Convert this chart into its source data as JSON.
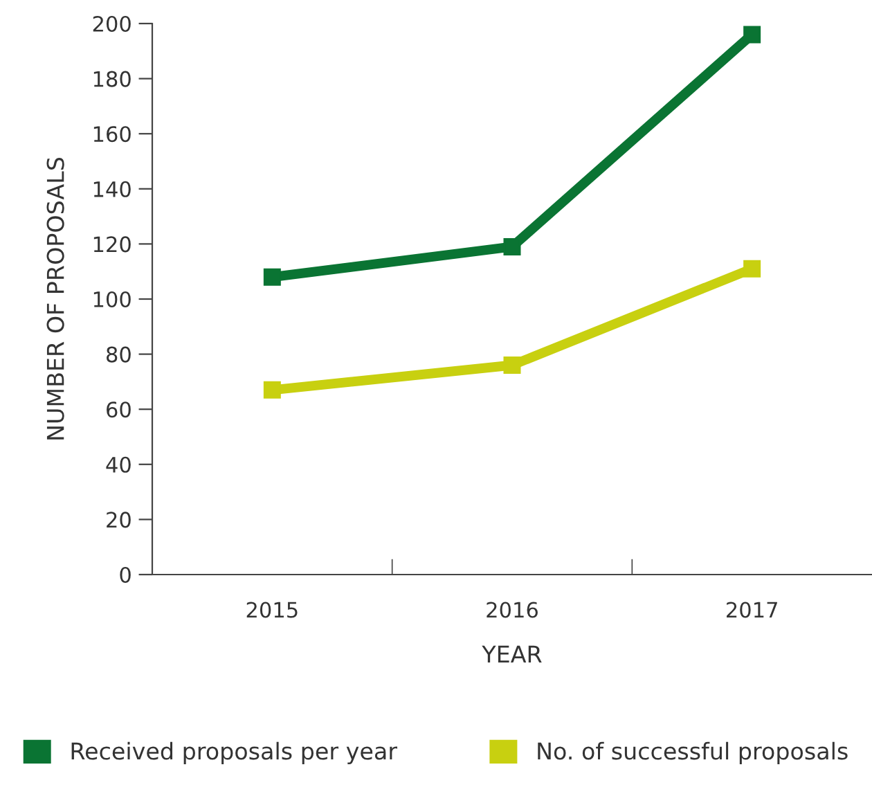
{
  "chart_data": {
    "type": "line",
    "xlabel": "YEAR",
    "ylabel": "NUMBER OF PROPOSALS",
    "categories": [
      "2015",
      "2016",
      "2017"
    ],
    "series": [
      {
        "name": "Received proposals per year",
        "color": "#0a7433",
        "values": [
          108,
          119,
          196
        ]
      },
      {
        "name": "No. of successful proposals",
        "color": "#c8d010",
        "values": [
          67,
          76,
          111
        ]
      }
    ],
    "ylim": [
      0,
      200
    ],
    "yticks": [
      0,
      20,
      40,
      60,
      80,
      100,
      120,
      140,
      160,
      180,
      200
    ],
    "marker": "square",
    "line_style": "solid",
    "grid": false,
    "legend": "bottom"
  }
}
